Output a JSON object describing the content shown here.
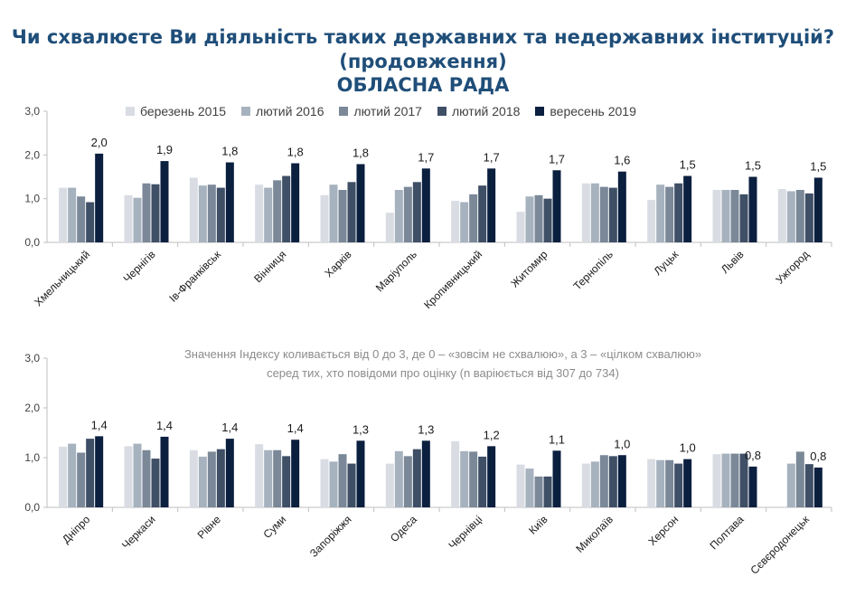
{
  "title": {
    "line1": "Чи схвалюєте Ви діяльність таких державних та недержавних інституцій?",
    "line2": "(продовження)",
    "line3": "ОБЛАСНА РАДА"
  },
  "legend": [
    {
      "label": "березень 2015",
      "color": "#d9dde3"
    },
    {
      "label": "лютий 2016",
      "color": "#a7b2bf"
    },
    {
      "label": "лютий 2017",
      "color": "#7a8898"
    },
    {
      "label": "лютий 2018",
      "color": "#3f4f66"
    },
    {
      "label": "вересень 2019",
      "color": "#0b1f3f"
    }
  ],
  "note": {
    "line1": "Значення Індексу коливається від 0 до 3, де 0 – «зовсім не схвалюю», а 3 – «цілком схвалюю»",
    "line2": "серед тих, хто повідоми про оцінку (n варіюється від 307 до 734)"
  },
  "chart_data": [
    {
      "type": "bar",
      "ylim": [
        0,
        3
      ],
      "yticks": [
        "0,0",
        "1,0",
        "2,0",
        "3,0"
      ],
      "categories": [
        "Хмельницький",
        "Чернігів",
        "Ів-Франківськ",
        "Вінниця",
        "Харків",
        "Маріуполь",
        "Кропивницький",
        "Житомир",
        "Тернопіль",
        "Луцьк",
        "Львів",
        "Ужгород"
      ],
      "series": [
        {
          "name": "березень 2015",
          "values": [
            1.25,
            1.08,
            1.48,
            1.32,
            1.08,
            0.68,
            0.95,
            0.7,
            1.35,
            0.97,
            1.2,
            1.22
          ]
        },
        {
          "name": "лютий 2016",
          "values": [
            1.25,
            1.02,
            1.3,
            1.25,
            1.32,
            1.2,
            0.92,
            1.05,
            1.35,
            1.32,
            1.2,
            1.17
          ]
        },
        {
          "name": "лютий 2017",
          "values": [
            1.05,
            1.35,
            1.32,
            1.42,
            1.2,
            1.27,
            1.1,
            1.08,
            1.27,
            1.27,
            1.2,
            1.2
          ]
        },
        {
          "name": "лютий 2018",
          "values": [
            0.92,
            1.33,
            1.25,
            1.52,
            1.38,
            1.38,
            1.3,
            1.0,
            1.25,
            1.35,
            1.1,
            1.12
          ]
        },
        {
          "name": "вересень 2019",
          "values": [
            2.03,
            1.86,
            1.83,
            1.81,
            1.79,
            1.69,
            1.69,
            1.65,
            1.62,
            1.52,
            1.5,
            1.48
          ]
        }
      ],
      "data_labels": [
        "2,0",
        "1,9",
        "1,8",
        "1,8",
        "1,8",
        "1,7",
        "1,7",
        "1,7",
        "1,6",
        "1,5",
        "1,5",
        "1,5"
      ]
    },
    {
      "type": "bar",
      "ylim": [
        0,
        3
      ],
      "yticks": [
        "0,0",
        "1,0",
        "2,0",
        "3,0"
      ],
      "categories": [
        "Дніпро",
        "Черкаси",
        "Рівне",
        "Суми",
        "Запоріжжя",
        "Одеса",
        "Чернівці",
        "Київ",
        "Миколаїв",
        "Херсон",
        "Полтава",
        "Сєвєродонецьк"
      ],
      "series": [
        {
          "name": "березень 2015",
          "values": [
            1.22,
            1.23,
            1.15,
            1.27,
            0.97,
            0.88,
            1.33,
            0.86,
            0.88,
            0.97,
            1.07,
            null
          ]
        },
        {
          "name": "лютий 2016",
          "values": [
            1.28,
            1.28,
            1.02,
            1.15,
            0.92,
            1.13,
            1.13,
            0.78,
            0.92,
            0.95,
            1.08,
            0.88
          ]
        },
        {
          "name": "лютий 2017",
          "values": [
            1.1,
            1.15,
            1.12,
            1.15,
            1.07,
            1.03,
            1.12,
            0.62,
            1.05,
            0.95,
            1.08,
            1.12
          ]
        },
        {
          "name": "лютий 2018",
          "values": [
            1.38,
            0.98,
            1.17,
            1.03,
            0.88,
            1.17,
            1.02,
            0.62,
            1.03,
            0.88,
            1.08,
            0.87
          ]
        },
        {
          "name": "вересень 2019",
          "values": [
            1.43,
            1.42,
            1.38,
            1.36,
            1.34,
            1.34,
            1.23,
            1.14,
            1.05,
            0.97,
            0.82,
            0.8
          ]
        }
      ],
      "data_labels": [
        "1,4",
        "1,4",
        "1,4",
        "1,4",
        "1,3",
        "1,3",
        "1,2",
        "1,1",
        "1,0",
        "1,0",
        "0,8",
        "0,8"
      ]
    }
  ]
}
